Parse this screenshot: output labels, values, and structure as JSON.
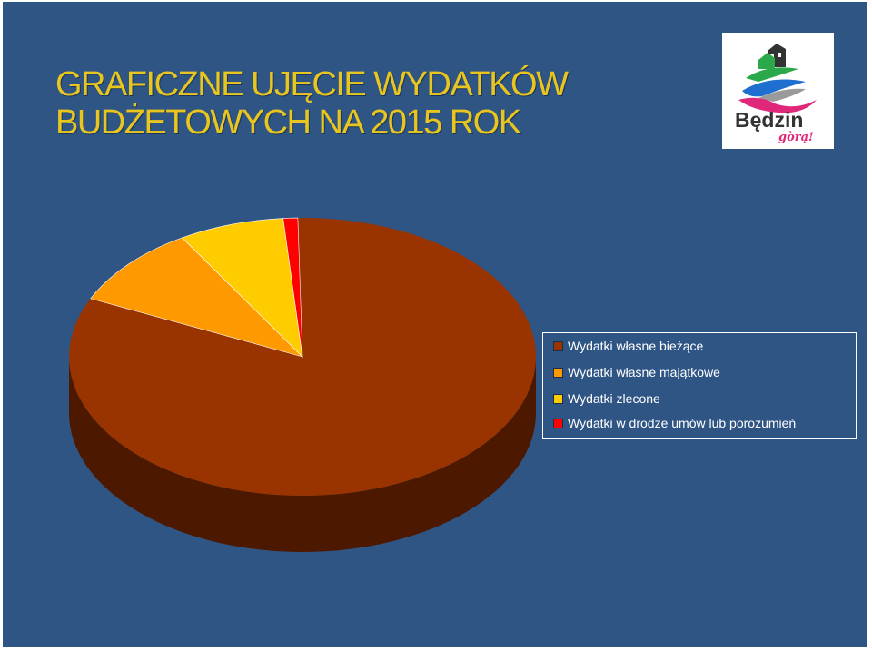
{
  "slide": {
    "title_line1": "GRAFICZNE UJĘCIE WYDATKÓW",
    "title_line2": "BUDŻETOWYCH NA 2015 ROK",
    "logo": {
      "icon": "bedzin-logo",
      "text": "Będzin",
      "tagline": "gòrą!"
    }
  },
  "chart_data": {
    "type": "pie",
    "style": "3d",
    "title": "",
    "legend_position": "right",
    "labels": [
      "Wydatki własne bieżące",
      "Wydatki własne majątkowe",
      "Wydatki zlecone",
      "Wydatki w drodze umów lub porozumień"
    ],
    "values": [
      82.2,
      9.5,
      7.3,
      1.0
    ],
    "colors": [
      "#993300",
      "#ff9900",
      "#ffcc00",
      "#ff0000"
    ],
    "side_colors": [
      "#4d1800",
      "#804c00",
      "#806600",
      "#800000"
    ]
  }
}
